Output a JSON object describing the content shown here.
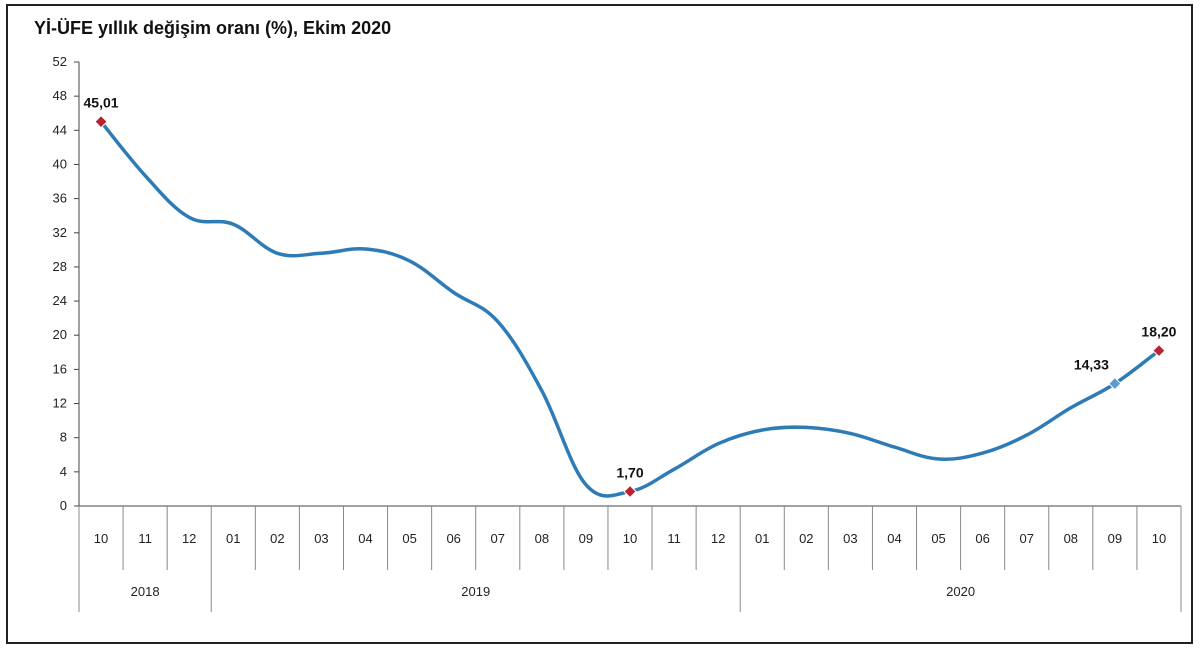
{
  "chart_data": {
    "type": "line",
    "title": "Yİ-ÜFE yıllık değişim oranı (%), Ekim 2020",
    "xlabel": "",
    "ylabel": "",
    "ylim": [
      0,
      52
    ],
    "y_ticks": [
      "0",
      "4",
      "8",
      "12",
      "16",
      "20",
      "24",
      "28",
      "32",
      "36",
      "40",
      "44",
      "48",
      "52"
    ],
    "categories": [
      "10",
      "11",
      "12",
      "01",
      "02",
      "03",
      "04",
      "05",
      "06",
      "07",
      "08",
      "09",
      "10",
      "11",
      "12",
      "01",
      "02",
      "03",
      "04",
      "05",
      "06",
      "07",
      "08",
      "09",
      "10"
    ],
    "year_groups": [
      {
        "label": "2018",
        "start": 0,
        "end": 2
      },
      {
        "label": "2019",
        "start": 3,
        "end": 14
      },
      {
        "label": "2020",
        "start": 15,
        "end": 24
      }
    ],
    "series": [
      {
        "values": [
          45.01,
          38.7,
          33.8,
          33.0,
          29.6,
          29.6,
          30.1,
          28.7,
          25.0,
          21.6,
          13.5,
          2.5,
          1.7,
          4.3,
          7.3,
          8.9,
          9.2,
          8.5,
          6.9,
          5.5,
          6.2,
          8.3,
          11.5,
          14.33,
          18.2
        ],
        "color": "#2e7bb6"
      }
    ],
    "highlights": [
      {
        "index": 0,
        "label": "45,01",
        "color": "#b8232f"
      },
      {
        "index": 12,
        "label": "1,70",
        "color": "#b8232f"
      },
      {
        "index": 23,
        "label": "14,33",
        "color": "#5b9bd5"
      },
      {
        "index": 24,
        "label": "18,20",
        "color": "#b8232f"
      }
    ],
    "grid": false,
    "legend": "none"
  }
}
